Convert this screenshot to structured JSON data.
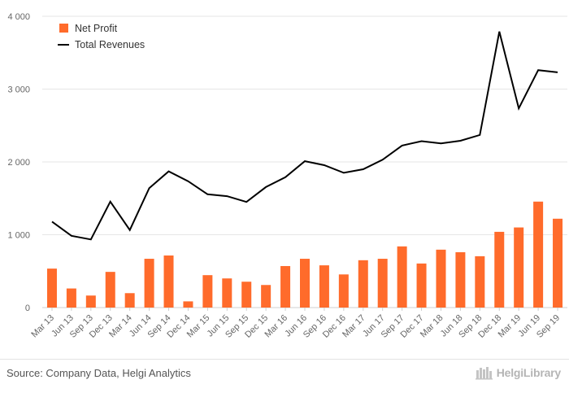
{
  "chart_data": {
    "type": "bar",
    "categories": [
      "Mar 13",
      "Jun 13",
      "Sep 13",
      "Dec 13",
      "Mar 14",
      "Jun 14",
      "Sep 14",
      "Dec 14",
      "Mar 15",
      "Jun 15",
      "Sep 15",
      "Dec 15",
      "Mar 16",
      "Jun 16",
      "Sep 16",
      "Dec 16",
      "Mar 17",
      "Jun 17",
      "Sep 17",
      "Dec 17",
      "Mar 18",
      "Jun 18",
      "Sep 18",
      "Dec 18",
      "Mar 19",
      "Jun 19",
      "Sep 19"
    ],
    "series": [
      {
        "name": "Net Profit",
        "type": "bar",
        "color": "#ff6b2b",
        "values": [
          535,
          262,
          165,
          490,
          198,
          670,
          715,
          85,
          445,
          400,
          355,
          310,
          570,
          670,
          580,
          455,
          650,
          670,
          840,
          605,
          795,
          760,
          705,
          1040,
          1100,
          1455,
          1220
        ]
      },
      {
        "name": "Total Revenues",
        "type": "line",
        "color": "#000000",
        "values": [
          1180,
          985,
          935,
          1455,
          1065,
          1640,
          1870,
          1735,
          1555,
          1530,
          1450,
          1655,
          1790,
          2010,
          1955,
          1850,
          1900,
          2030,
          2225,
          2285,
          2255,
          2290,
          2370,
          3790,
          2735,
          3260,
          3230
        ]
      }
    ],
    "y_ticks": [
      "0",
      "1 000",
      "2 000",
      "3 000",
      "4 000"
    ],
    "ylim": [
      0,
      4000
    ],
    "grid": true,
    "legend_position": "top-left"
  },
  "footer": {
    "source": "Source: Company Data, Helgi Analytics",
    "brand": "HelgiLibrary"
  }
}
